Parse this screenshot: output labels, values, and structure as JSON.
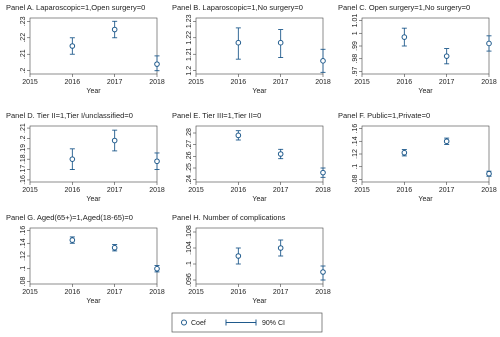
{
  "chart_data": [
    {
      "type": "errorbar",
      "title": "Panel A. Laparoscopic=1,Open surgery=0",
      "x_label": "Year",
      "x": [
        2016,
        2017,
        2018
      ],
      "values": [
        0.215,
        0.225,
        0.204
      ],
      "ci_low": [
        0.21,
        0.22,
        0.2
      ],
      "ci_high": [
        0.22,
        0.23,
        0.209
      ],
      "color": "#1f5a8c",
      "xlim": [
        2015,
        2018
      ],
      "xticks": [
        2015,
        2016,
        2017,
        2018
      ],
      "ylim": [
        0.198,
        0.232
      ],
      "yticks": [
        {
          "value": 0.2,
          "label": ".2"
        },
        {
          "value": 0.21,
          "label": ".21"
        },
        {
          "value": 0.22,
          "label": ".22"
        },
        {
          "value": 0.23,
          "label": ".23"
        }
      ]
    },
    {
      "type": "errorbar",
      "title": "Panel B. Laparoscopic=1,No surgery=0",
      "x_label": "Year",
      "x": [
        2016,
        2017,
        2018
      ],
      "values": [
        1.217,
        1.217,
        1.206
      ],
      "ci_low": [
        1.207,
        1.208,
        1.199
      ],
      "ci_high": [
        1.226,
        1.225,
        1.213
      ],
      "color": "#1f5a8c",
      "xlim": [
        2015,
        2018
      ],
      "xticks": [
        2015,
        2016,
        2017,
        2018
      ],
      "ylim": [
        1.198,
        1.232
      ],
      "yticks": [
        1.2,
        1.21,
        1.22,
        1.23
      ]
    },
    {
      "type": "errorbar",
      "title": "Panel C. Open surgery=1,No surgery=0",
      "x_label": "Year",
      "x": [
        2016,
        2017,
        2018
      ],
      "values": [
        0.997,
        0.982,
        0.992
      ],
      "ci_low": [
        0.99,
        0.976,
        0.986
      ],
      "ci_high": [
        1.004,
        0.988,
        0.998
      ],
      "color": "#1f5a8c",
      "xlim": [
        2015,
        2018
      ],
      "xticks": [
        2015,
        2016,
        2017,
        2018
      ],
      "ylim": [
        0.968,
        1.012
      ],
      "yticks": [
        {
          "value": 0.97,
          "label": ".97"
        },
        {
          "value": 0.98,
          "label": ".98"
        },
        {
          "value": 0.99,
          "label": ".99"
        },
        1,
        1.01
      ]
    },
    {
      "type": "errorbar",
      "title": "Panel D. Tier II=1,Tier I/unclassified=0",
      "x_label": "Year",
      "x": [
        2016,
        2017,
        2018
      ],
      "values": [
        0.18,
        0.198,
        0.178
      ],
      "ci_low": [
        0.17,
        0.188,
        0.17
      ],
      "ci_high": [
        0.19,
        0.208,
        0.186
      ],
      "color": "#1f5a8c",
      "xlim": [
        2015,
        2018
      ],
      "xticks": [
        2015,
        2016,
        2017,
        2018
      ],
      "ylim": [
        0.158,
        0.212
      ],
      "yticks": [
        {
          "value": 0.16,
          "label": ".16"
        },
        {
          "value": 0.17,
          "label": ".17"
        },
        {
          "value": 0.18,
          "label": ".18"
        },
        {
          "value": 0.19,
          "label": ".19"
        },
        {
          "value": 0.2,
          "label": ".2"
        },
        {
          "value": 0.21,
          "label": ".21"
        }
      ]
    },
    {
      "type": "errorbar",
      "title": "Panel E. Tier III=1,Tier II=0",
      "x_label": "Year",
      "x": [
        2016,
        2017,
        2018
      ],
      "values": [
        0.278,
        0.262,
        0.246
      ],
      "ci_low": [
        0.274,
        0.258,
        0.242
      ],
      "ci_high": [
        0.282,
        0.266,
        0.25
      ],
      "color": "#1f5a8c",
      "xlim": [
        2015,
        2018
      ],
      "xticks": [
        2015,
        2016,
        2017,
        2018
      ],
      "ylim": [
        0.238,
        0.286
      ],
      "yticks": [
        {
          "value": 0.24,
          "label": ".24"
        },
        {
          "value": 0.25,
          "label": ".25"
        },
        {
          "value": 0.26,
          "label": ".26"
        },
        {
          "value": 0.27,
          "label": ".27"
        },
        {
          "value": 0.28,
          "label": ".28"
        }
      ]
    },
    {
      "type": "errorbar",
      "title": "Panel F. Public=1,Private=0",
      "x_label": "Year",
      "x": [
        2016,
        2017,
        2018
      ],
      "values": [
        0.122,
        0.14,
        0.089
      ],
      "ci_low": [
        0.117,
        0.135,
        0.085
      ],
      "ci_high": [
        0.127,
        0.145,
        0.093
      ],
      "color": "#1f5a8c",
      "xlim": [
        2015,
        2018
      ],
      "xticks": [
        2015,
        2016,
        2017,
        2018
      ],
      "ylim": [
        0.076,
        0.164
      ],
      "yticks": [
        {
          "value": 0.08,
          "label": ".08"
        },
        {
          "value": 0.1,
          "label": ".1"
        },
        {
          "value": 0.12,
          "label": ".12"
        },
        {
          "value": 0.14,
          "label": ".14"
        },
        {
          "value": 0.16,
          "label": ".16"
        }
      ]
    },
    {
      "type": "errorbar",
      "title": "Panel G. Aged(65+)=1,Aged(18-65)=0",
      "x_label": "Year",
      "x": [
        2016,
        2017,
        2018
      ],
      "values": [
        0.145,
        0.133,
        0.1
      ],
      "ci_low": [
        0.14,
        0.128,
        0.095
      ],
      "ci_high": [
        0.15,
        0.138,
        0.105
      ],
      "color": "#1f5a8c",
      "xlim": [
        2015,
        2018
      ],
      "xticks": [
        2015,
        2016,
        2017,
        2018
      ],
      "ylim": [
        0.076,
        0.164
      ],
      "yticks": [
        {
          "value": 0.08,
          "label": ".08"
        },
        {
          "value": 0.1,
          "label": ".1"
        },
        {
          "value": 0.12,
          "label": ".12"
        },
        {
          "value": 0.14,
          "label": ".14"
        },
        {
          "value": 0.16,
          "label": ".16"
        }
      ]
    },
    {
      "type": "errorbar",
      "title": "Panel H. Number of complications",
      "x_label": "Year",
      "x": [
        2016,
        2017,
        2018
      ],
      "values": [
        0.102,
        0.104,
        0.098
      ],
      "ci_low": [
        0.1,
        0.102,
        0.096
      ],
      "ci_high": [
        0.104,
        0.106,
        0.0995
      ],
      "color": "#1f5a8c",
      "xlim": [
        2015,
        2018
      ],
      "xticks": [
        2015,
        2016,
        2017,
        2018
      ],
      "ylim": [
        0.095,
        0.109
      ],
      "yticks": [
        {
          "value": 0.096,
          "label": ".096"
        },
        {
          "value": 0.1,
          "label": ".1"
        },
        {
          "value": 0.104,
          "label": ".104"
        },
        {
          "value": 0.108,
          "label": ".108"
        }
      ]
    }
  ],
  "legend": [
    "Coef",
    "90% CI"
  ]
}
